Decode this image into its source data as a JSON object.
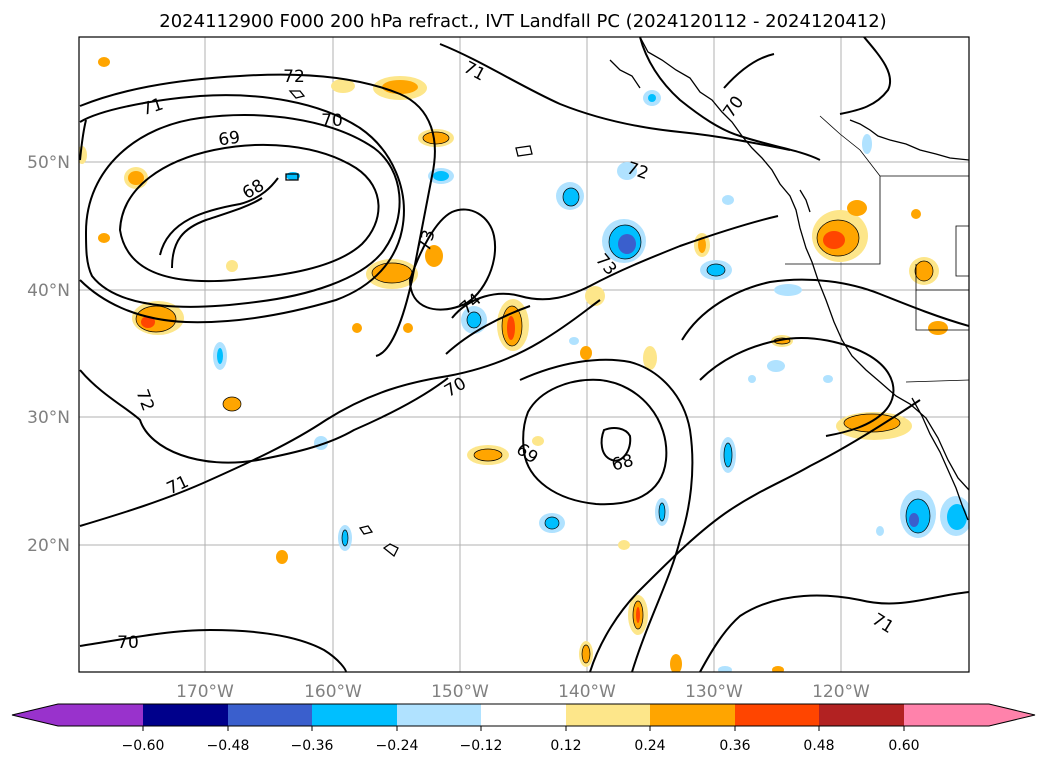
{
  "title": "2024112900 F000 200 hPa refract., IVT Landfall PC (2024120112 - 2024120412)",
  "map": {
    "lon_labels": [
      "170°W",
      "160°W",
      "150°W",
      "140°W",
      "130°W",
      "120°W"
    ],
    "lat_labels": [
      "50°N",
      "40°N",
      "30°N",
      "20°N"
    ]
  },
  "contour_labels": [
    "72",
    "71",
    "70",
    "69",
    "68",
    "73",
    "74",
    "70",
    "69",
    "68",
    "72",
    "71",
    "70",
    "71",
    "72",
    "73",
    "70",
    "71"
  ],
  "colorbar": {
    "ticks": [
      "−0.60",
      "−0.48",
      "−0.36",
      "−0.24",
      "−0.12",
      "0.12",
      "0.24",
      "0.36",
      "0.48",
      "0.60"
    ],
    "colors": [
      "#9932cc",
      "#00008b",
      "#3a5fcd",
      "#00bfff",
      "#b0e2ff",
      "#ffffff",
      "#fde68a",
      "#ffa500",
      "#ff4500",
      "#b22222",
      "#ff82ab"
    ]
  }
}
